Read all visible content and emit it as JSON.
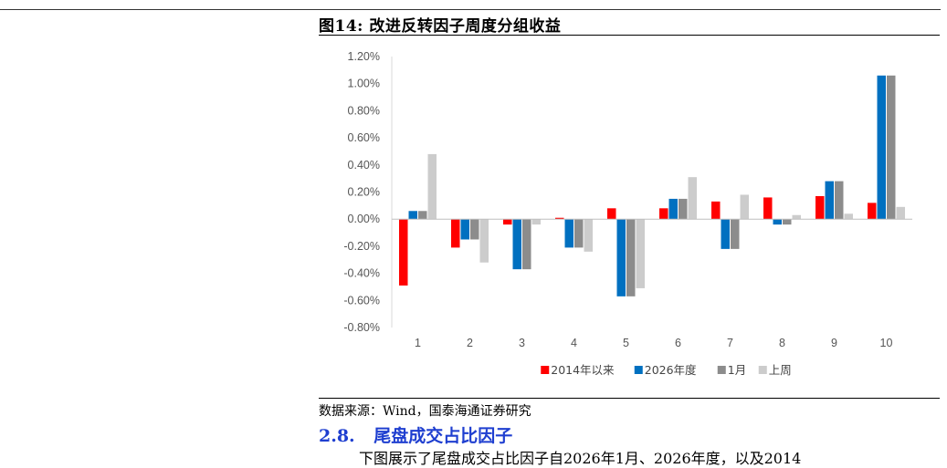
{
  "figure": {
    "title": "图14:  改进反转因子周度分组收益",
    "source": "数据来源：Wind，国泰海通证券研究"
  },
  "section": {
    "number": "2.8.",
    "title": "尾盘成交占比因子"
  },
  "body_text": "下图展示了尾盘成交占比因子自2026年1月、2026年度，以及2014",
  "chart_data": {
    "type": "bar",
    "categories": [
      "1",
      "2",
      "3",
      "4",
      "5",
      "6",
      "7",
      "8",
      "9",
      "10"
    ],
    "series": [
      {
        "name": "2014年以来",
        "color": "#ff0000",
        "values": [
          -0.49,
          -0.21,
          -0.04,
          0.01,
          0.08,
          0.08,
          0.13,
          0.16,
          0.17,
          0.12
        ]
      },
      {
        "name": "2026年度",
        "color": "#0070c0",
        "values": [
          0.06,
          -0.15,
          -0.37,
          -0.21,
          -0.57,
          0.15,
          -0.22,
          -0.04,
          0.28,
          1.06
        ]
      },
      {
        "name": "1月",
        "color": "#8c8c8c",
        "values": [
          0.06,
          -0.15,
          -0.37,
          -0.21,
          -0.57,
          0.15,
          -0.22,
          -0.04,
          0.28,
          1.06
        ]
      },
      {
        "name": "上周",
        "color": "#cccccc",
        "values": [
          0.48,
          -0.32,
          -0.04,
          -0.24,
          -0.51,
          0.31,
          0.18,
          0.03,
          0.04,
          0.09
        ]
      }
    ],
    "y_ticks": [
      "1.20%",
      "1.00%",
      "0.80%",
      "0.60%",
      "0.40%",
      "0.20%",
      "0.00%",
      "-0.20%",
      "-0.40%",
      "-0.60%",
      "-0.80%"
    ],
    "ylim": [
      -0.8,
      1.2
    ],
    "y_unit": "%",
    "grid": false,
    "legend_position": "bottom"
  }
}
